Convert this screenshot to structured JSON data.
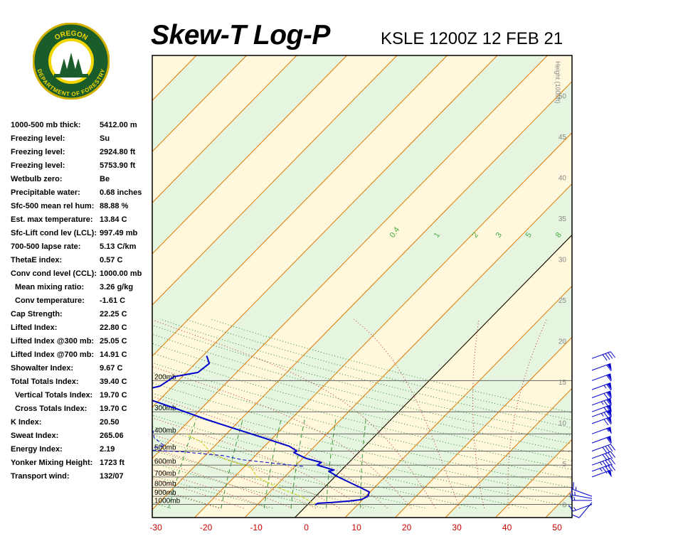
{
  "header": {
    "title": "Skew-T Log-P",
    "station_time": "KSLE 1200Z 12 FEB 21",
    "logo_text_top": "OREGON",
    "logo_text_bottom": "DEPARTMENT OF FORESTRY"
  },
  "indices": [
    {
      "label": "1000-500 mb thick:",
      "value": "5412.00 m",
      "indent": false
    },
    {
      "label": "Freezing level:",
      "value": "Su",
      "indent": false
    },
    {
      "label": "Freezing level:",
      "value": "2924.80 ft",
      "indent": false
    },
    {
      "label": "Freezing level:",
      "value": "5753.90 ft",
      "indent": false
    },
    {
      "label": "Wetbulb zero:",
      "value": "Be",
      "indent": false
    },
    {
      "label": "Precipitable water:",
      "value": "0.68 inches",
      "indent": false
    },
    {
      "label": "Sfc-500 mean rel hum:",
      "value": "88.88 %",
      "indent": false
    },
    {
      "label": "Est. max temperature:",
      "value": "13.84 C",
      "indent": false
    },
    {
      "label": "Sfc-Lift cond lev (LCL):",
      "value": "997.49 mb",
      "indent": false
    },
    {
      "label": "700-500 lapse rate:",
      "value": "5.13 C/km",
      "indent": false
    },
    {
      "label": "ThetaE index:",
      "value": "0.57 C",
      "indent": false
    },
    {
      "label": "Conv cond level (CCL):",
      "value": "1000.00 mb",
      "indent": false
    },
    {
      "label": "Mean mixing ratio:",
      "value": "3.26 g/kg",
      "indent": true
    },
    {
      "label": "Conv temperature:",
      "value": "-1.61 C",
      "indent": true
    },
    {
      "label": "Cap Strength:",
      "value": "22.25 C",
      "indent": false
    },
    {
      "label": "Lifted Index:",
      "value": "22.80 C",
      "indent": false
    },
    {
      "label": "Lifted Index @300 mb:",
      "value": "25.05 C",
      "indent": false
    },
    {
      "label": "Lifted Index @700 mb:",
      "value": "14.91 C",
      "indent": false
    },
    {
      "label": "Showalter Index:",
      "value": "9.67 C",
      "indent": false
    },
    {
      "label": "Total Totals Index:",
      "value": "39.40 C",
      "indent": false
    },
    {
      "label": "Vertical Totals Index:",
      "value": "19.70 C",
      "indent": true
    },
    {
      "label": "Cross Totals Index:",
      "value": "19.70 C",
      "indent": true
    },
    {
      "label": "K Index:",
      "value": "20.50",
      "indent": false
    },
    {
      "label": "Sweat Index:",
      "value": "265.06",
      "indent": false
    },
    {
      "label": "Energy Index:",
      "value": "2.19",
      "indent": false
    },
    {
      "label": "Yonker Mixing Height:",
      "value": "1723 ft",
      "indent": false
    },
    {
      "label": "Transport wind:",
      "value": "132/07",
      "indent": false
    }
  ],
  "chart_data": {
    "type": "line",
    "x_ticks": [
      -30,
      -20,
      -10,
      0,
      10,
      20,
      30,
      40,
      50
    ],
    "x_tick_color": "#cc0000",
    "pressure_levels": [
      {
        "p": 200,
        "label": "200mb"
      },
      {
        "p": 300,
        "label": "300mb"
      },
      {
        "p": 400,
        "label": "400mb"
      },
      {
        "p": 500,
        "label": "500mb"
      },
      {
        "p": 600,
        "label": "600mb"
      },
      {
        "p": 700,
        "label": "700mb"
      },
      {
        "p": 800,
        "label": "800mb"
      },
      {
        "p": 900,
        "label": "900mb"
      },
      {
        "p": 1000,
        "label": "1000mb"
      }
    ],
    "height_axis": {
      "label": "Height (1000ft)",
      "ticks": [
        0,
        5,
        10,
        15,
        20,
        25,
        30,
        35,
        40,
        45,
        50
      ]
    },
    "mixing_ratio_labels": [
      "0.4",
      "1",
      "2",
      "3",
      "5",
      "8"
    ],
    "temperature_profile": {
      "color": "#0000cc",
      "points": [
        {
          "p": 1010,
          "t": 1.8
        },
        {
          "p": 1000,
          "t": 1.6
        },
        {
          "p": 985,
          "t": 1.8
        },
        {
          "p": 975,
          "t": 4.5
        },
        {
          "p": 955,
          "t": 8.0
        },
        {
          "p": 940,
          "t": 9.7
        },
        {
          "p": 900,
          "t": 10.4
        },
        {
          "p": 850,
          "t": 9.8
        },
        {
          "p": 800,
          "t": 7.0
        },
        {
          "p": 700,
          "t": 0.7
        },
        {
          "p": 650,
          "t": -2.3
        },
        {
          "p": 640,
          "t": -1.5
        },
        {
          "p": 600,
          "t": -5.8
        },
        {
          "p": 580,
          "t": -5.5
        },
        {
          "p": 550,
          "t": -9.3
        },
        {
          "p": 510,
          "t": -12.9
        },
        {
          "p": 500,
          "t": -12.6
        },
        {
          "p": 470,
          "t": -15.0
        },
        {
          "p": 430,
          "t": -20.5
        },
        {
          "p": 360,
          "t": -31.7
        },
        {
          "p": 330,
          "t": -37.1
        },
        {
          "p": 290,
          "t": -44.6
        },
        {
          "p": 260,
          "t": -51.1
        },
        {
          "p": 242,
          "t": -55.1
        },
        {
          "p": 232,
          "t": -56.5
        },
        {
          "p": 215,
          "t": -52.6
        },
        {
          "p": 190,
          "t": -51.6
        },
        {
          "p": 180,
          "t": -47.7
        },
        {
          "p": 160,
          "t": -47.2
        },
        {
          "p": 145,
          "t": -49.2
        }
      ]
    },
    "dewpoint_profile": {
      "color": "#0000cc",
      "style": "dashed",
      "points": [
        {
          "p": 610,
          "t": -8.4
        },
        {
          "p": 560,
          "t": -21.8
        },
        {
          "p": 530,
          "t": -26.5
        },
        {
          "p": 505,
          "t": -35.1
        },
        {
          "p": 490,
          "t": -44.0
        },
        {
          "p": 468,
          "t": -40.0
        },
        {
          "p": 420,
          "t": -43.7
        },
        {
          "p": 385,
          "t": -45.2
        },
        {
          "p": 362,
          "t": -54.9
        },
        {
          "p": 330,
          "t": -58.2
        },
        {
          "p": 305,
          "t": -53.9
        },
        {
          "p": 290,
          "t": -62.3
        },
        {
          "p": 270,
          "t": -61.3
        },
        {
          "p": 250,
          "t": -63.8
        },
        {
          "p": 225,
          "t": -70.6
        },
        {
          "p": 210,
          "t": -78.0
        },
        {
          "p": 195,
          "t": -73.3
        },
        {
          "p": 180,
          "t": -78.8
        },
        {
          "p": 160,
          "t": -85.2
        },
        {
          "p": 145,
          "t": -89.5
        }
      ]
    },
    "parcel_path": {
      "color": "#cccc00",
      "points": [
        {
          "p": 1000,
          "t": 1.7
        },
        {
          "p": 900,
          "t": -3.0
        },
        {
          "p": 800,
          "t": -9.5
        },
        {
          "p": 700,
          "t": -15.5
        },
        {
          "p": 620,
          "t": -18.5
        },
        {
          "p": 560,
          "t": -25.0
        },
        {
          "p": 500,
          "t": -30.0
        },
        {
          "p": 450,
          "t": -33.0
        },
        {
          "p": 400,
          "t": -38.0
        }
      ]
    },
    "wind_barbs": [
      {
        "p": 1000,
        "dir": 70,
        "kt": 15
      },
      {
        "p": 975,
        "dir": 40,
        "kt": 10
      },
      {
        "p": 950,
        "dir": 90,
        "kt": 15
      },
      {
        "p": 925,
        "dir": 100,
        "kt": 15
      },
      {
        "p": 900,
        "dir": 110,
        "kt": 15
      },
      {
        "p": 700,
        "dir": 250,
        "kt": 50
      },
      {
        "p": 650,
        "dir": 250,
        "kt": 45
      },
      {
        "p": 600,
        "dir": 250,
        "kt": 45
      },
      {
        "p": 550,
        "dir": 250,
        "kt": 40
      },
      {
        "p": 500,
        "dir": 250,
        "kt": 40
      },
      {
        "p": 450,
        "dir": 250,
        "kt": 60
      },
      {
        "p": 400,
        "dir": 250,
        "kt": 55
      },
      {
        "p": 350,
        "dir": 250,
        "kt": 70
      },
      {
        "p": 320,
        "dir": 250,
        "kt": 75
      },
      {
        "p": 300,
        "dir": 250,
        "kt": 70
      },
      {
        "p": 275,
        "dir": 250,
        "kt": 75
      },
      {
        "p": 250,
        "dir": 250,
        "kt": 70
      },
      {
        "p": 225,
        "dir": 250,
        "kt": 65
      },
      {
        "p": 200,
        "dir": 250,
        "kt": 60
      },
      {
        "p": 175,
        "dir": 250,
        "kt": 60
      },
      {
        "p": 150,
        "dir": 250,
        "kt": 40
      }
    ],
    "grid": true
  }
}
